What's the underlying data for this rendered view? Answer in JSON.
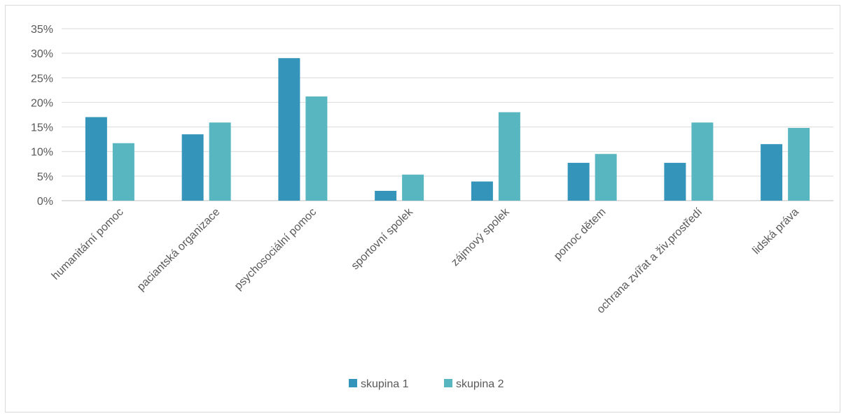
{
  "chart_data": {
    "type": "bar",
    "categories": [
      "humanitární pomoc",
      "paciantská organizace",
      "psychosociální pomoc",
      "sportovní spolek",
      "zájmový spolek",
      "pomoc dětem",
      "ochrana zvířat a živ.prostředí",
      "lidská práva"
    ],
    "series": [
      {
        "name": "skupina 1",
        "color": "#3494BA",
        "values": [
          17,
          13.5,
          29,
          2,
          3.9,
          7.7,
          7.7,
          11.5
        ]
      },
      {
        "name": "skupina 2",
        "color": "#58B6C0",
        "values": [
          11.7,
          15.9,
          21.2,
          5.3,
          18,
          9.5,
          15.9,
          14.8
        ]
      }
    ],
    "ylim": [
      0,
      35
    ],
    "yticks": [
      0,
      5,
      10,
      15,
      20,
      25,
      30,
      35
    ],
    "ytick_labels": [
      "0%",
      "5%",
      "10%",
      "15%",
      "20%",
      "25%",
      "30%",
      "35%"
    ],
    "grid": true,
    "legend_position": "bottom",
    "title": "",
    "xlabel": "",
    "ylabel": ""
  }
}
